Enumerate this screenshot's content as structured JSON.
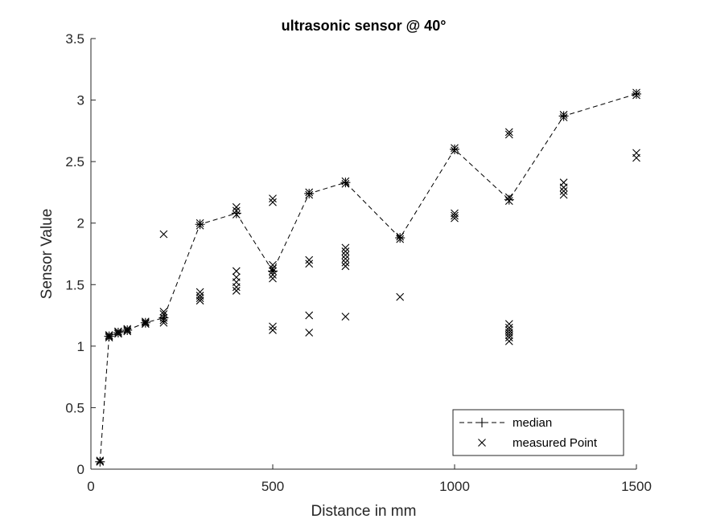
{
  "chart_data": {
    "type": "line",
    "title": "ultrasonic sensor @ 40°",
    "xlabel": "Distance in mm",
    "ylabel": "Sensor Value",
    "xlim": [
      0,
      1500
    ],
    "ylim": [
      0,
      3.5
    ],
    "xticks": [
      0,
      500,
      1000,
      1500
    ],
    "xtick_labels": [
      "0",
      "500",
      "1000",
      "1500"
    ],
    "yticks": [
      0,
      0.5,
      1,
      1.5,
      2,
      2.5,
      3,
      3.5
    ],
    "ytick_labels": [
      "0",
      "0.5",
      "1",
      "1.5",
      "2",
      "2.5",
      "3",
      "3.5"
    ],
    "grid": false,
    "legend_position": "bottom-right",
    "series": [
      {
        "name": "median",
        "style": "dashed line with plus markers",
        "color": "#000000",
        "x": [
          25,
          50,
          75,
          100,
          150,
          200,
          300,
          400,
          500,
          600,
          700,
          850,
          1000,
          1150,
          1300,
          1500
        ],
        "y": [
          0.06,
          1.08,
          1.11,
          1.13,
          1.19,
          1.23,
          1.99,
          2.08,
          1.61,
          2.24,
          2.33,
          1.88,
          2.6,
          2.19,
          2.87,
          3.05
        ]
      },
      {
        "name": "measured Point",
        "style": "x markers",
        "color": "#000000",
        "points": [
          [
            25,
            0.06
          ],
          [
            25,
            0.07
          ],
          [
            50,
            1.07
          ],
          [
            50,
            1.08
          ],
          [
            50,
            1.09
          ],
          [
            75,
            1.1
          ],
          [
            75,
            1.11
          ],
          [
            75,
            1.12
          ],
          [
            100,
            1.12
          ],
          [
            100,
            1.13
          ],
          [
            100,
            1.14
          ],
          [
            150,
            1.18
          ],
          [
            150,
            1.19
          ],
          [
            150,
            1.2
          ],
          [
            200,
            1.19
          ],
          [
            200,
            1.21
          ],
          [
            200,
            1.23
          ],
          [
            200,
            1.26
          ],
          [
            200,
            1.28
          ],
          [
            200,
            1.91
          ],
          [
            300,
            1.37
          ],
          [
            300,
            1.39
          ],
          [
            300,
            1.41
          ],
          [
            300,
            1.44
          ],
          [
            300,
            1.98
          ],
          [
            300,
            2.0
          ],
          [
            400,
            1.45
          ],
          [
            400,
            1.48
          ],
          [
            400,
            1.52
          ],
          [
            400,
            1.56
          ],
          [
            400,
            1.61
          ],
          [
            400,
            2.07
          ],
          [
            400,
            2.1
          ],
          [
            400,
            2.13
          ],
          [
            500,
            1.13
          ],
          [
            500,
            1.16
          ],
          [
            500,
            1.55
          ],
          [
            500,
            1.58
          ],
          [
            500,
            1.61
          ],
          [
            500,
            1.63
          ],
          [
            500,
            1.66
          ],
          [
            500,
            2.17
          ],
          [
            500,
            2.2
          ],
          [
            600,
            1.11
          ],
          [
            600,
            1.25
          ],
          [
            600,
            1.67
          ],
          [
            600,
            1.7
          ],
          [
            600,
            2.23
          ],
          [
            600,
            2.25
          ],
          [
            700,
            1.24
          ],
          [
            700,
            1.65
          ],
          [
            700,
            1.68
          ],
          [
            700,
            1.71
          ],
          [
            700,
            1.74
          ],
          [
            700,
            1.77
          ],
          [
            700,
            1.8
          ],
          [
            700,
            2.32
          ],
          [
            700,
            2.34
          ],
          [
            850,
            1.4
          ],
          [
            850,
            1.87
          ],
          [
            850,
            1.89
          ],
          [
            1000,
            2.04
          ],
          [
            1000,
            2.06
          ],
          [
            1000,
            2.08
          ],
          [
            1000,
            2.59
          ],
          [
            1000,
            2.61
          ],
          [
            1150,
            1.04
          ],
          [
            1150,
            1.07
          ],
          [
            1150,
            1.09
          ],
          [
            1150,
            1.11
          ],
          [
            1150,
            1.13
          ],
          [
            1150,
            1.15
          ],
          [
            1150,
            1.18
          ],
          [
            1150,
            2.18
          ],
          [
            1150,
            2.21
          ],
          [
            1150,
            2.72
          ],
          [
            1150,
            2.74
          ],
          [
            1300,
            2.23
          ],
          [
            1300,
            2.26
          ],
          [
            1300,
            2.29
          ],
          [
            1300,
            2.33
          ],
          [
            1300,
            2.86
          ],
          [
            1300,
            2.88
          ],
          [
            1500,
            2.53
          ],
          [
            1500,
            2.57
          ],
          [
            1500,
            3.04
          ],
          [
            1500,
            3.06
          ]
        ]
      }
    ]
  }
}
